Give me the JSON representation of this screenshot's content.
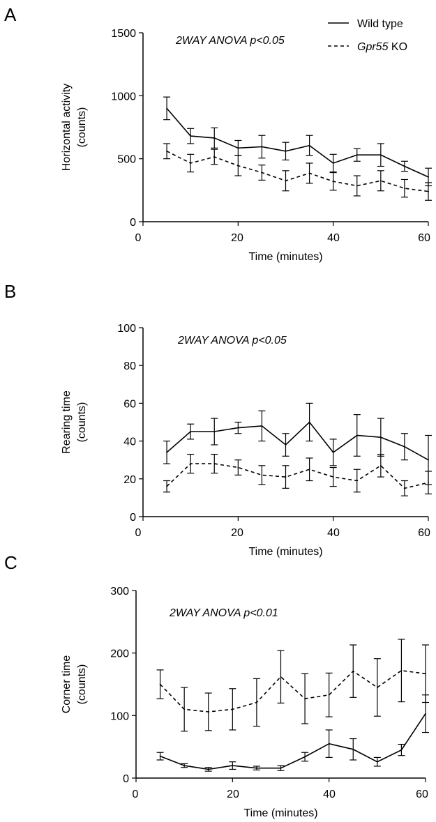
{
  "legend": {
    "wild_type": "Wild type",
    "ko_gene": "Gpr55",
    "ko_suffix": " KO"
  },
  "chart_data": [
    {
      "type": "line",
      "panel": "A",
      "annotation": "2WAY ANOVA p<0.05",
      "xlabel": "Time (minutes)",
      "ylabel": [
        "Horizontal activity",
        "(counts)"
      ],
      "xlim": [
        0,
        60
      ],
      "ylim": [
        0,
        1500
      ],
      "xticks": [
        0,
        20,
        40,
        60
      ],
      "yticks": [
        0,
        500,
        1000,
        1500
      ],
      "x": [
        5,
        10,
        15,
        20,
        25,
        30,
        35,
        40,
        45,
        50,
        55,
        60
      ],
      "series": [
        {
          "name": "Wild type",
          "style": "solid",
          "values": [
            900,
            680,
            665,
            585,
            595,
            560,
            605,
            465,
            530,
            530,
            440,
            355
          ],
          "errors": [
            90,
            60,
            80,
            60,
            90,
            70,
            80,
            70,
            50,
            90,
            40,
            70
          ]
        },
        {
          "name": "Gpr55 KO",
          "style": "dashed",
          "values": [
            560,
            465,
            515,
            445,
            390,
            325,
            385,
            320,
            285,
            325,
            265,
            240
          ],
          "errors": [
            60,
            70,
            60,
            80,
            60,
            80,
            80,
            70,
            80,
            80,
            70,
            70
          ]
        }
      ]
    },
    {
      "type": "line",
      "panel": "B",
      "annotation": "2WAY ANOVA p<0.05",
      "xlabel": "Time (minutes)",
      "ylabel": [
        "Rearing time",
        "(counts)"
      ],
      "xlim": [
        0,
        60
      ],
      "ylim": [
        0,
        100
      ],
      "xticks": [
        0,
        20,
        40,
        60
      ],
      "yticks": [
        0,
        20,
        40,
        60,
        80,
        100
      ],
      "x": [
        5,
        10,
        15,
        20,
        25,
        30,
        35,
        40,
        45,
        50,
        55,
        60
      ],
      "series": [
        {
          "name": "Wild type",
          "style": "solid",
          "values": [
            34,
            45,
            45,
            47,
            48,
            38,
            50,
            34,
            43,
            42,
            37,
            30
          ],
          "errors": [
            6,
            4,
            7,
            3,
            8,
            6,
            10,
            7,
            11,
            10,
            7,
            13
          ]
        },
        {
          "name": "Gpr55 KO",
          "style": "dashed",
          "values": [
            16,
            28,
            28,
            26,
            22,
            21,
            25,
            21,
            19,
            27,
            15,
            18
          ],
          "errors": [
            3,
            5,
            5,
            4,
            5,
            6,
            6,
            5,
            6,
            6,
            4,
            6
          ]
        }
      ]
    },
    {
      "type": "line",
      "panel": "C",
      "annotation": "2WAY ANOVA p<0.01",
      "xlabel": "Time (minutes)",
      "ylabel": [
        "Corner  time",
        "(counts)"
      ],
      "xlim": [
        0,
        60
      ],
      "ylim": [
        0,
        300
      ],
      "xticks": [
        0,
        20,
        40,
        60
      ],
      "yticks": [
        0,
        100,
        200,
        300
      ],
      "x": [
        5,
        10,
        15,
        20,
        25,
        30,
        35,
        40,
        45,
        50,
        55,
        60
      ],
      "series": [
        {
          "name": "Wild type",
          "style": "solid",
          "values": [
            35,
            20,
            14,
            20,
            16,
            16,
            34,
            55,
            46,
            26,
            45,
            103
          ],
          "errors": [
            6,
            3,
            3,
            6,
            3,
            4,
            7,
            22,
            17,
            7,
            9,
            30
          ]
        },
        {
          "name": "Gpr55 KO",
          "style": "dashed",
          "values": [
            150,
            110,
            106,
            110,
            121,
            162,
            127,
            133,
            171,
            145,
            172,
            167
          ],
          "errors": [
            23,
            35,
            30,
            33,
            38,
            42,
            40,
            35,
            42,
            46,
            50,
            46
          ]
        }
      ]
    }
  ]
}
